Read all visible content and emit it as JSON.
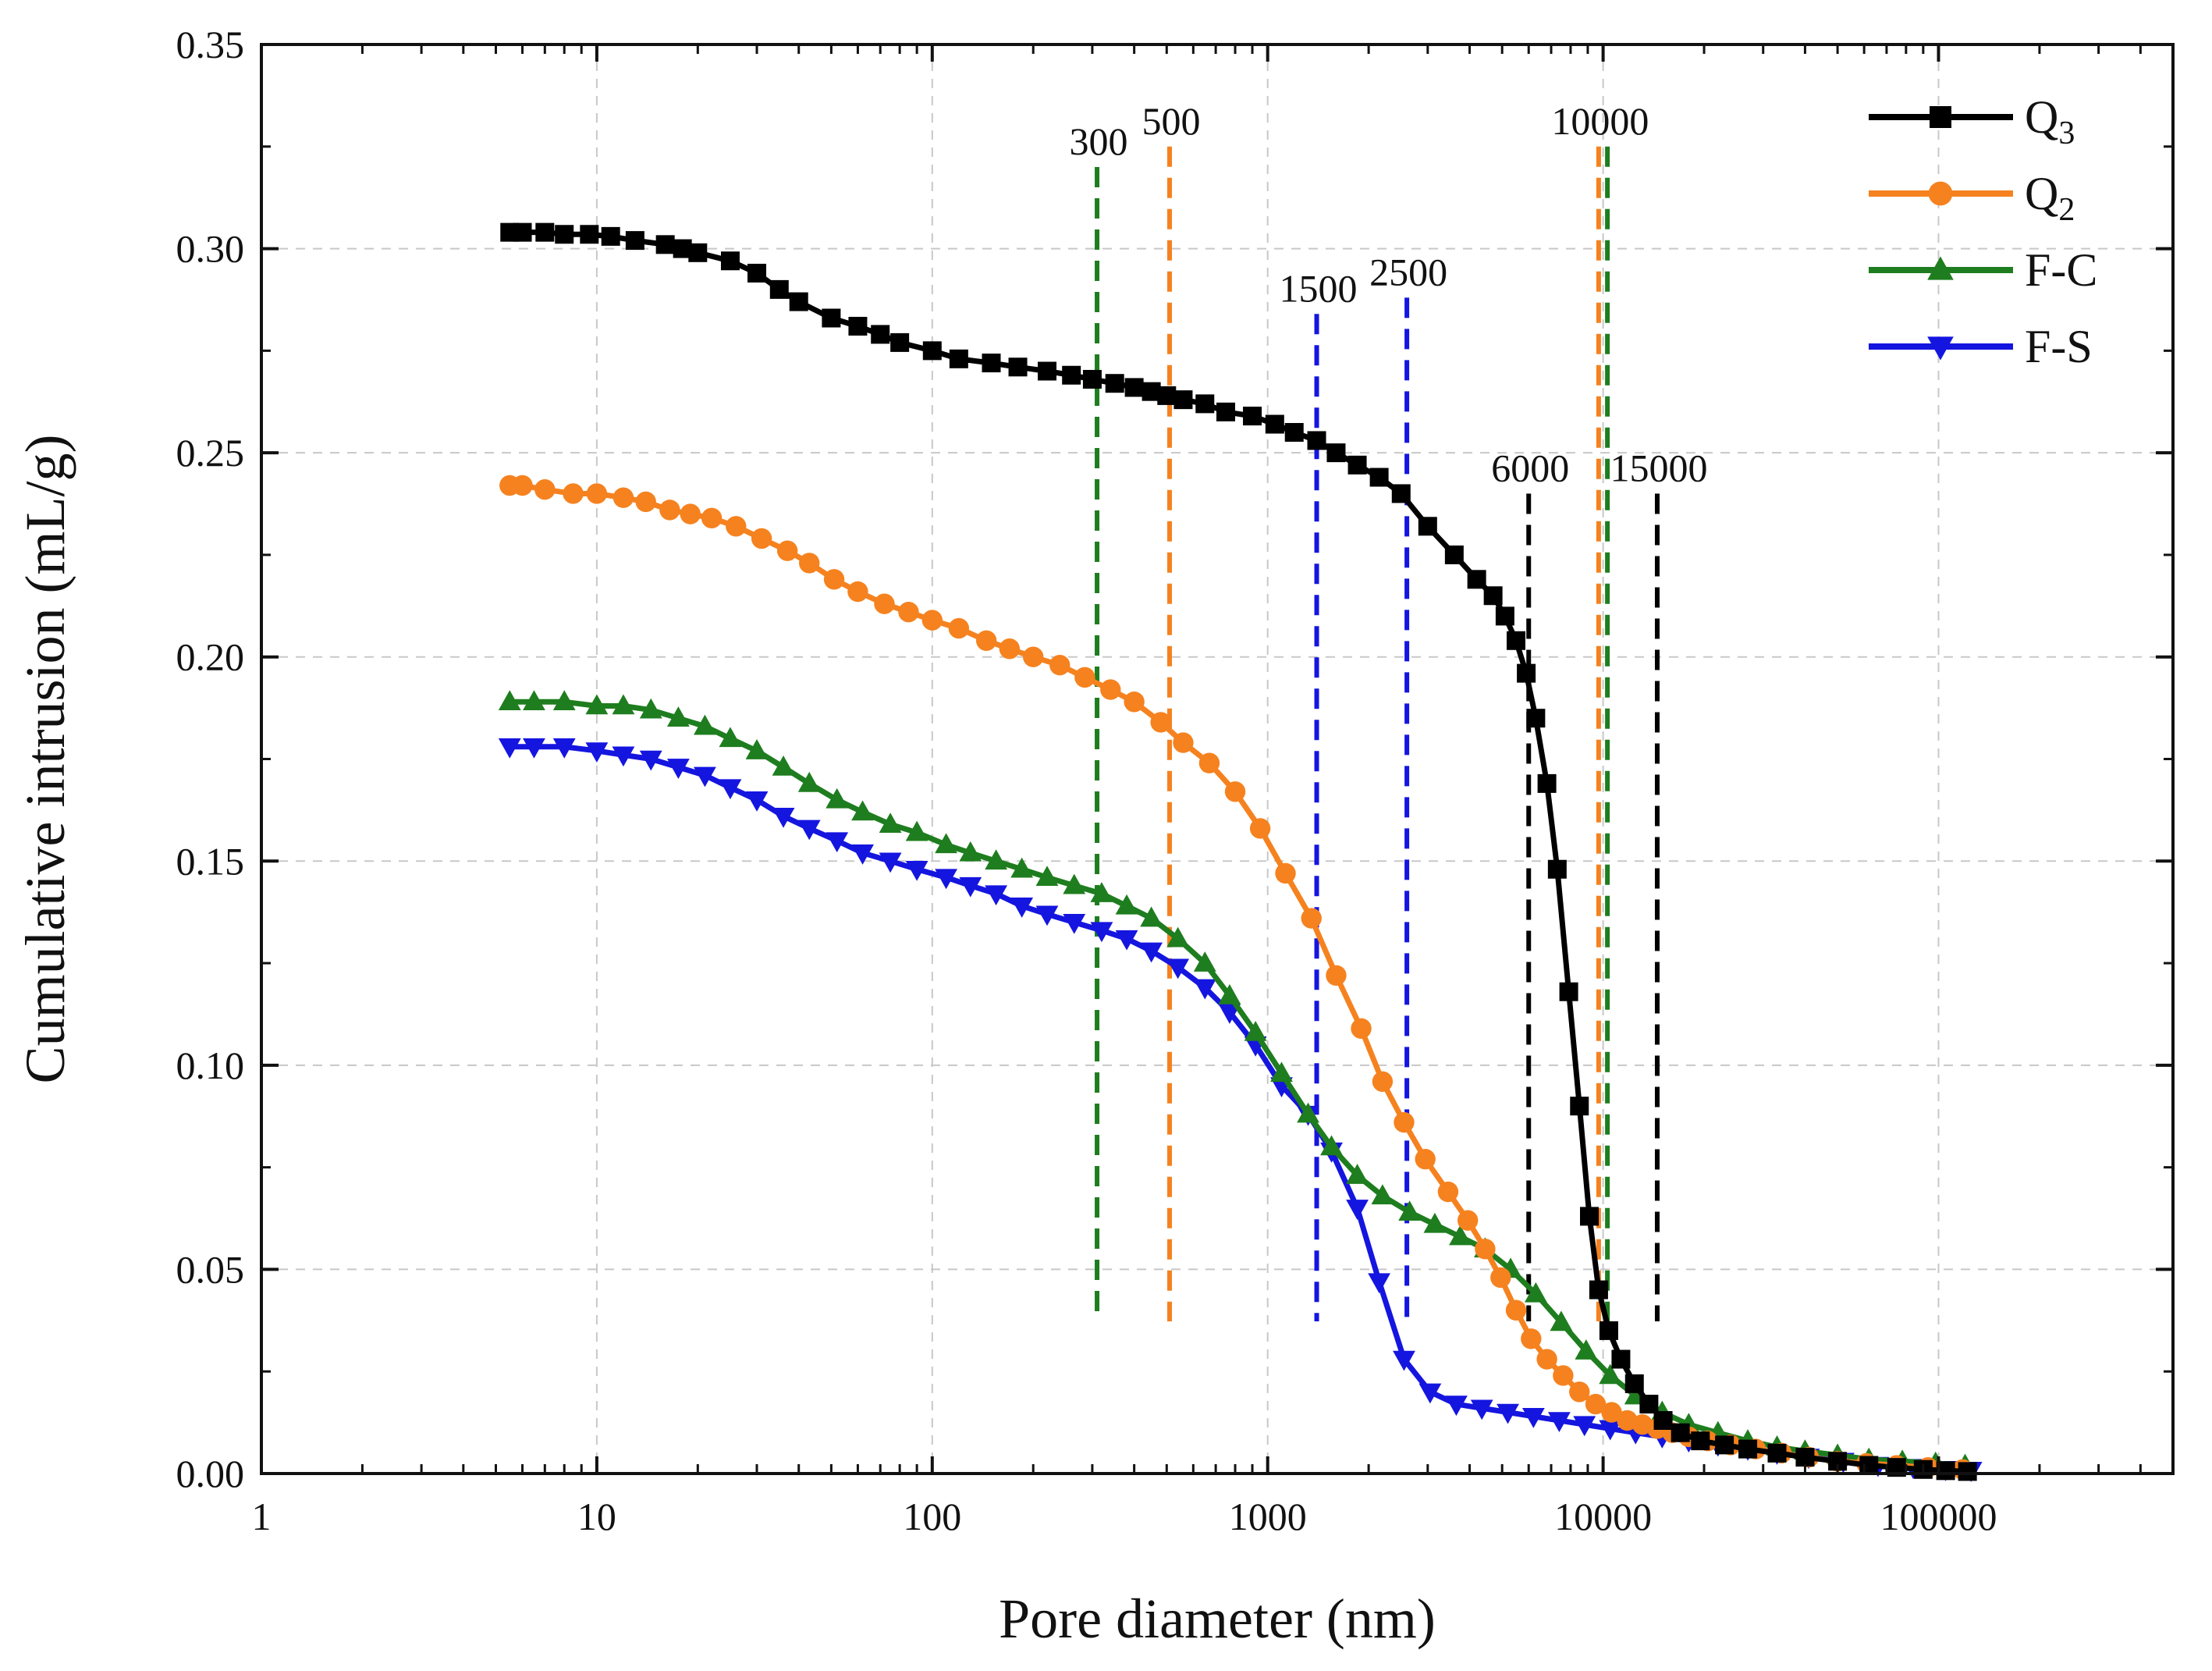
{
  "chart_data": {
    "type": "line",
    "x_scale": "log",
    "xlabel": "Pore diameter (nm)",
    "ylabel": "Cumulative intrusion (mL/g)",
    "xlim": [
      1,
      500000
    ],
    "ylim": [
      0,
      0.35
    ],
    "x_ticks": [
      1,
      10,
      100,
      1000,
      10000,
      100000
    ],
    "x_tick_labels": [
      "1",
      "10",
      "100",
      "1000",
      "10000",
      "100000"
    ],
    "y_ticks": [
      0,
      0.05,
      0.1,
      0.15,
      0.2,
      0.25,
      0.3,
      0.35
    ],
    "y_tick_labels": [
      "0.00",
      "0.05",
      "0.10",
      "0.15",
      "0.20",
      "0.25",
      "0.30",
      "0.35"
    ],
    "grid": true,
    "legend_position": "top-right",
    "series": [
      {
        "name": "Q3",
        "label_main": "Q",
        "label_sub": "3",
        "color": "#000000",
        "marker": "square",
        "x": [
          5.5,
          6,
          7,
          8,
          9.5,
          11,
          13,
          16,
          18,
          20,
          25,
          30,
          35,
          40,
          50,
          60,
          70,
          80,
          100,
          120,
          150,
          180,
          220,
          260,
          300,
          350,
          400,
          450,
          500,
          560,
          650,
          750,
          900,
          1050,
          1200,
          1400,
          1600,
          1850,
          2150,
          2500,
          3000,
          3600,
          4200,
          4700,
          5100,
          5500,
          5900,
          6300,
          6800,
          7300,
          7900,
          8500,
          9100,
          9700,
          10400,
          11300,
          12400,
          13700,
          15100,
          17000,
          19500,
          23000,
          27000,
          33000,
          40000,
          50000,
          62000,
          75000,
          90000,
          105000,
          122000
        ],
        "y": [
          0.304,
          0.304,
          0.304,
          0.3035,
          0.3035,
          0.303,
          0.302,
          0.301,
          0.3,
          0.299,
          0.297,
          0.294,
          0.29,
          0.287,
          0.283,
          0.281,
          0.279,
          0.277,
          0.275,
          0.273,
          0.272,
          0.271,
          0.27,
          0.269,
          0.268,
          0.267,
          0.266,
          0.265,
          0.264,
          0.263,
          0.262,
          0.26,
          0.259,
          0.257,
          0.255,
          0.253,
          0.25,
          0.247,
          0.244,
          0.24,
          0.232,
          0.225,
          0.219,
          0.215,
          0.21,
          0.204,
          0.196,
          0.185,
          0.169,
          0.148,
          0.118,
          0.09,
          0.063,
          0.045,
          0.035,
          0.028,
          0.022,
          0.017,
          0.013,
          0.01,
          0.008,
          0.007,
          0.006,
          0.005,
          0.004,
          0.003,
          0.002,
          0.0015,
          0.001,
          0.0007,
          0.0005
        ]
      },
      {
        "name": "Q2",
        "label_main": "Q",
        "label_sub": "2",
        "color": "#F5821F",
        "marker": "circle",
        "x": [
          5.5,
          6,
          7,
          8.5,
          10,
          12,
          14,
          16.5,
          19,
          22,
          26,
          31,
          37,
          43,
          51,
          60,
          72,
          85,
          100,
          120,
          145,
          170,
          200,
          240,
          285,
          340,
          400,
          480,
          560,
          670,
          800,
          950,
          1130,
          1350,
          1600,
          1900,
          2200,
          2550,
          2950,
          3450,
          3950,
          4450,
          4950,
          5500,
          6100,
          6800,
          7600,
          8500,
          9500,
          10600,
          11800,
          13100,
          14500,
          16100,
          18000,
          20500,
          24000,
          28500,
          34000,
          41000,
          50000,
          61000,
          75000,
          93000,
          118000
        ],
        "y": [
          0.242,
          0.242,
          0.241,
          0.24,
          0.24,
          0.239,
          0.238,
          0.236,
          0.235,
          0.234,
          0.232,
          0.229,
          0.226,
          0.223,
          0.219,
          0.216,
          0.213,
          0.211,
          0.209,
          0.207,
          0.204,
          0.202,
          0.2,
          0.198,
          0.195,
          0.192,
          0.189,
          0.184,
          0.179,
          0.174,
          0.167,
          0.158,
          0.147,
          0.136,
          0.122,
          0.109,
          0.096,
          0.086,
          0.077,
          0.069,
          0.062,
          0.055,
          0.048,
          0.04,
          0.033,
          0.028,
          0.024,
          0.02,
          0.017,
          0.015,
          0.013,
          0.012,
          0.011,
          0.01,
          0.009,
          0.008,
          0.007,
          0.006,
          0.005,
          0.004,
          0.003,
          0.0025,
          0.002,
          0.0015,
          0.001
        ]
      },
      {
        "name": "F-C",
        "label_main": "F-C",
        "label_sub": "",
        "color": "#1E7D1E",
        "marker": "triangle-up",
        "x": [
          5.5,
          6.5,
          8,
          10,
          12,
          14.5,
          17.5,
          21,
          25,
          30,
          36,
          43,
          52,
          62,
          75,
          90,
          110,
          130,
          155,
          185,
          220,
          265,
          320,
          380,
          450,
          540,
          650,
          770,
          920,
          1100,
          1320,
          1550,
          1850,
          2200,
          2650,
          3150,
          3750,
          4450,
          5300,
          6300,
          7500,
          8900,
          10500,
          12500,
          15000,
          18000,
          22000,
          27000,
          33000,
          40000,
          50000,
          62000,
          78000,
          98000,
          120000
        ],
        "y": [
          0.189,
          0.189,
          0.189,
          0.188,
          0.188,
          0.187,
          0.185,
          0.183,
          0.18,
          0.177,
          0.173,
          0.169,
          0.165,
          0.162,
          0.159,
          0.157,
          0.154,
          0.152,
          0.15,
          0.148,
          0.146,
          0.144,
          0.142,
          0.139,
          0.136,
          0.131,
          0.125,
          0.117,
          0.108,
          0.098,
          0.088,
          0.08,
          0.073,
          0.068,
          0.064,
          0.061,
          0.058,
          0.055,
          0.05,
          0.044,
          0.037,
          0.03,
          0.024,
          0.019,
          0.015,
          0.012,
          0.01,
          0.008,
          0.0065,
          0.0055,
          0.0045,
          0.0035,
          0.003,
          0.0025,
          0.002
        ]
      },
      {
        "name": "F-S",
        "label_main": "F-S",
        "label_sub": "",
        "color": "#1515E0",
        "marker": "triangle-down",
        "x": [
          5.5,
          6.5,
          8,
          10,
          12,
          14.5,
          17.5,
          21,
          25,
          30,
          36,
          43,
          52,
          62,
          75,
          90,
          110,
          130,
          155,
          185,
          220,
          265,
          320,
          380,
          450,
          540,
          650,
          770,
          920,
          1100,
          1320,
          1550,
          1850,
          2150,
          2550,
          3050,
          3650,
          4350,
          5200,
          6200,
          7400,
          8800,
          10500,
          12500,
          15000,
          18000,
          22000,
          27000,
          33000,
          41000,
          52000,
          66000,
          84000,
          105000,
          125000
        ],
        "y": [
          0.178,
          0.178,
          0.178,
          0.177,
          0.176,
          0.175,
          0.173,
          0.171,
          0.168,
          0.165,
          0.161,
          0.158,
          0.155,
          0.152,
          0.15,
          0.148,
          0.146,
          0.144,
          0.142,
          0.139,
          0.137,
          0.135,
          0.133,
          0.131,
          0.128,
          0.124,
          0.119,
          0.113,
          0.105,
          0.095,
          0.088,
          0.079,
          0.065,
          0.047,
          0.028,
          0.02,
          0.017,
          0.016,
          0.015,
          0.014,
          0.013,
          0.012,
          0.011,
          0.01,
          0.009,
          0.008,
          0.007,
          0.006,
          0.005,
          0.004,
          0.003,
          0.002,
          0.0015,
          0.001,
          0.0008
        ]
      }
    ],
    "reference_lines": [
      {
        "label": "300",
        "x": 310,
        "y_top": 0.32,
        "color": "#1E7D1E"
      },
      {
        "label": "500",
        "x": 510,
        "y_top": 0.325,
        "color": "#F5821F"
      },
      {
        "label": "1500",
        "x": 1400,
        "y_top": 0.284,
        "color": "#1515E0"
      },
      {
        "label": "2500",
        "x": 2600,
        "y_top": 0.288,
        "color": "#1515E0"
      },
      {
        "label": "6000",
        "x": 6000,
        "y_top": 0.24,
        "color": "#000000"
      },
      {
        "label": "10000",
        "x": 9700,
        "y_top": 0.325,
        "color": "#F5821F"
      },
      {
        "label": "",
        "x": 10300,
        "y_top": 0.325,
        "color": "#1E7D1E"
      },
      {
        "label": "15000",
        "x": 14500,
        "y_top": 0.24,
        "color": "#000000"
      }
    ]
  }
}
